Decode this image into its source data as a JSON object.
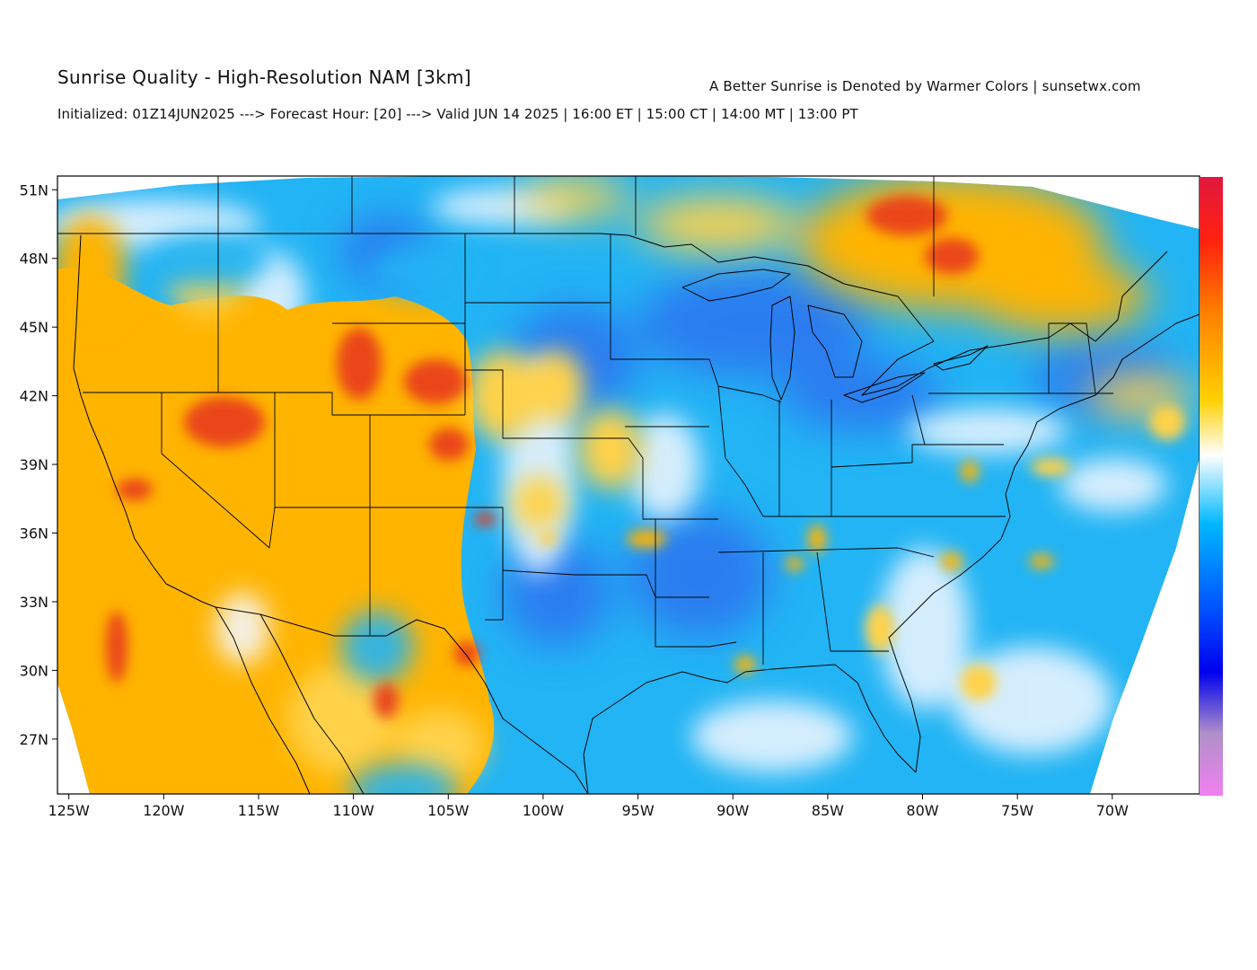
{
  "header": {
    "title": "Sunrise Quality - High-Resolution NAM [3km]",
    "attribution": "A Better Sunrise is Denoted by Warmer Colors | sunsetwx.com",
    "init_line": "Initialized: 01Z14JUN2025 ---> Forecast Hour: [20] ---> Valid JUN 14 2025 | 16:00 ET | 15:00 CT | 14:00 MT | 13:00 PT"
  },
  "map": {
    "projection": "lat-lon",
    "lon_range": [
      -125.6,
      -65.4
    ],
    "lat_range": [
      24.6,
      51.6
    ],
    "lat_ticks": [
      {
        "value": 51,
        "label": "51N"
      },
      {
        "value": 48,
        "label": "48N"
      },
      {
        "value": 45,
        "label": "45N"
      },
      {
        "value": 42,
        "label": "42N"
      },
      {
        "value": 39,
        "label": "39N"
      },
      {
        "value": 36,
        "label": "36N"
      },
      {
        "value": 33,
        "label": "33N"
      },
      {
        "value": 30,
        "label": "30N"
      },
      {
        "value": 27,
        "label": "27N"
      }
    ],
    "lon_ticks": [
      {
        "value": -125,
        "label": "125W"
      },
      {
        "value": -120,
        "label": "120W"
      },
      {
        "value": -115,
        "label": "115W"
      },
      {
        "value": -110,
        "label": "110W"
      },
      {
        "value": -105,
        "label": "105W"
      },
      {
        "value": -100,
        "label": "100W"
      },
      {
        "value": -95,
        "label": "95W"
      },
      {
        "value": -90,
        "label": "90W"
      },
      {
        "value": -85,
        "label": "85W"
      },
      {
        "value": -80,
        "label": "80W"
      },
      {
        "value": -75,
        "label": "75W"
      },
      {
        "value": -70,
        "label": "70W"
      }
    ],
    "colorbar_stops": [
      "#e01840",
      "#ff2010",
      "#ff8000",
      "#ffd000",
      "#ffffff",
      "#00b8ff",
      "#0050ff",
      "#0000ee",
      "#b090c8",
      "#f080f0"
    ],
    "palette": {
      "warm_orange": "#ffb400",
      "warm_yellow": "#ffd24a",
      "hot_red": "#e83a1a",
      "cool_sky": "#22b4f4",
      "cool_blue": "#2a7df0",
      "deep_blue": "#1f4fe0",
      "neutral": "#f4f8ff"
    }
  }
}
